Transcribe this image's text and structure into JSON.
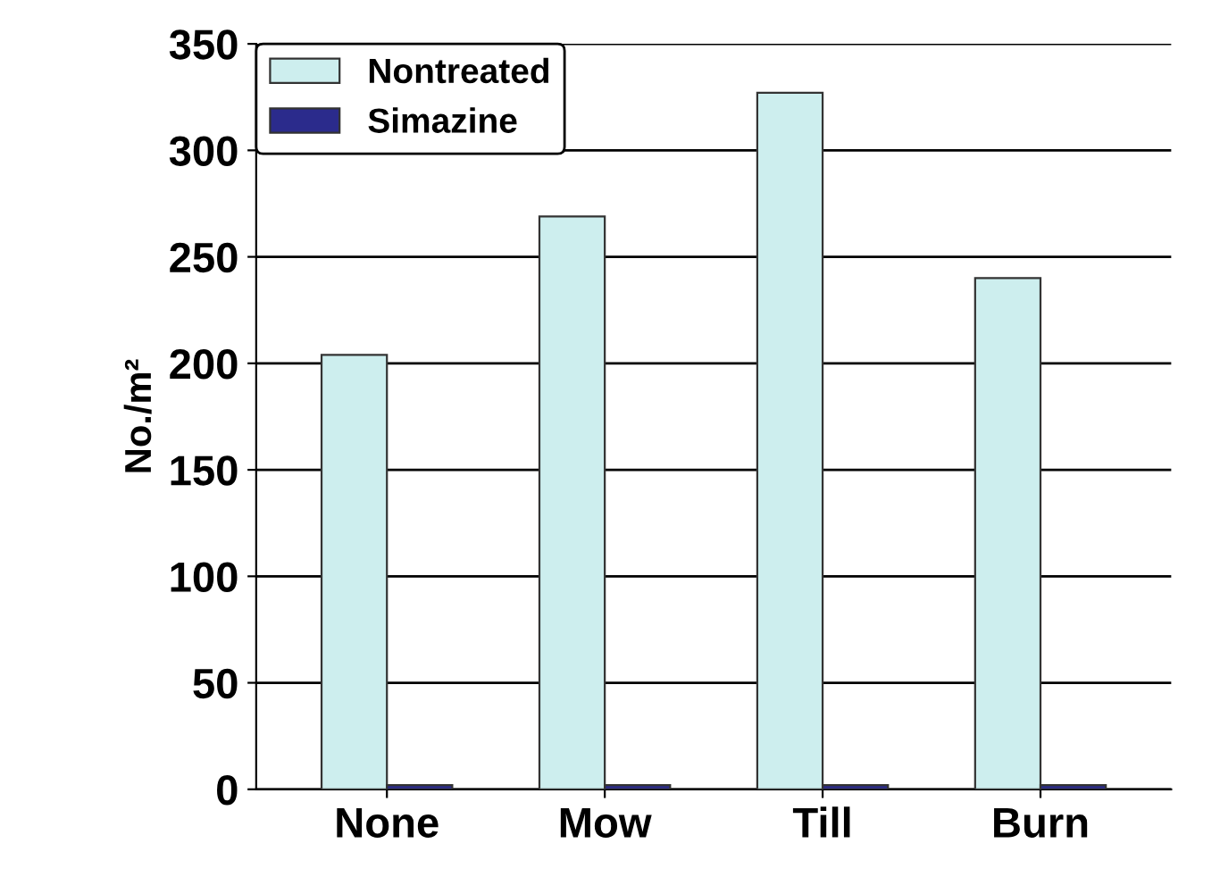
{
  "chart_data": {
    "type": "bar",
    "ylabel": "No./m²",
    "categories": [
      "None",
      "Mow",
      "Till",
      "Burn"
    ],
    "series": [
      {
        "name": "Nontreated",
        "color": "#cdeeee",
        "values": [
          204,
          269,
          327,
          240
        ]
      },
      {
        "name": "Simazine",
        "color": "#2b2b8c",
        "values": [
          2,
          2,
          2,
          2
        ]
      }
    ],
    "ylim": [
      0,
      350
    ],
    "yticks": [
      0,
      50,
      100,
      150,
      200,
      250,
      300,
      350
    ],
    "grid": "y",
    "legend": "top left"
  }
}
